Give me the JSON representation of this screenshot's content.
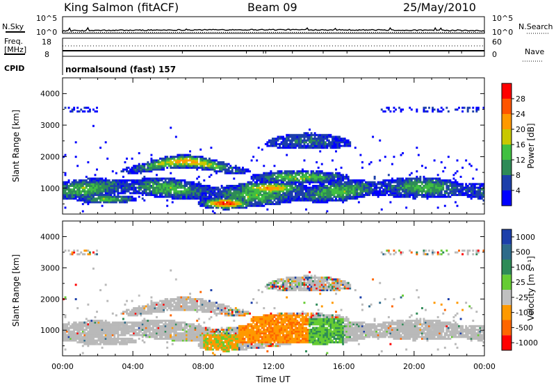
{
  "header": {
    "station": "King Salmon (fitACF)",
    "beam": "Beam 09",
    "date": "25/May/2010"
  },
  "top_panels": {
    "nsky_label": "N.Sky",
    "nsearch_label": "N.Search",
    "freq_label_line1": "Freq.",
    "freq_label_line2": "[MHz]",
    "nave_label": "Nave",
    "cpid_label": "CPID",
    "cpid_text": "normalsound (fast) 157",
    "noise_left_ticks": [
      "10^5",
      "10^0"
    ],
    "noise_right_ticks": [
      "10^5",
      "10^0"
    ],
    "freq_left_ticks": [
      "18",
      "8"
    ],
    "nave_right_ticks": [
      "60",
      "0"
    ]
  },
  "colors": {
    "power": [
      "#0000ff",
      "#1c3faa",
      "#2e8b57",
      "#40c040",
      "#c8c800",
      "#ff9900",
      "#ff5500",
      "#ff0000"
    ],
    "velocity": [
      "#1c3faa",
      "#2e6b8a",
      "#2e8b57",
      "#66cc33",
      "#c0c0c0",
      "#ff9900",
      "#ff6600",
      "#ff0000"
    ],
    "ground": "#b9b9b9"
  },
  "chart_data": [
    {
      "type": "heatmap",
      "quantity": "power",
      "xlabel": "",
      "ylabel": "Slant Range [km]",
      "x_ticks": [
        "00:00",
        "04:00",
        "08:00",
        "12:00",
        "16:00",
        "20:00",
        "00:00"
      ],
      "y_ticks": [
        "1000",
        "2000",
        "3000",
        "4000"
      ],
      "xlim_hours": [
        0,
        24
      ],
      "ylim_km": [
        180,
        4500
      ],
      "colorbar_label": "Power [dB]",
      "colorbar_ticks": [
        "4",
        "8",
        "12",
        "16",
        "20",
        "24",
        "28"
      ],
      "colorbar_range": [
        0,
        32
      ]
    },
    {
      "type": "heatmap",
      "quantity": "velocity",
      "xlabel": "Time UT",
      "ylabel": "Slant Range [km]",
      "x_ticks": [
        "00:00",
        "04:00",
        "08:00",
        "12:00",
        "16:00",
        "20:00",
        "00:00"
      ],
      "y_ticks": [
        "1000",
        "2000",
        "3000",
        "4000"
      ],
      "xlim_hours": [
        0,
        24
      ],
      "ylim_km": [
        180,
        4500
      ],
      "colorbar_label": "Velocity [m s⁻¹]",
      "colorbar_ticks": [
        "1000",
        "500",
        "100",
        "25",
        "-25",
        "-100",
        "-500",
        "-1000"
      ]
    }
  ]
}
